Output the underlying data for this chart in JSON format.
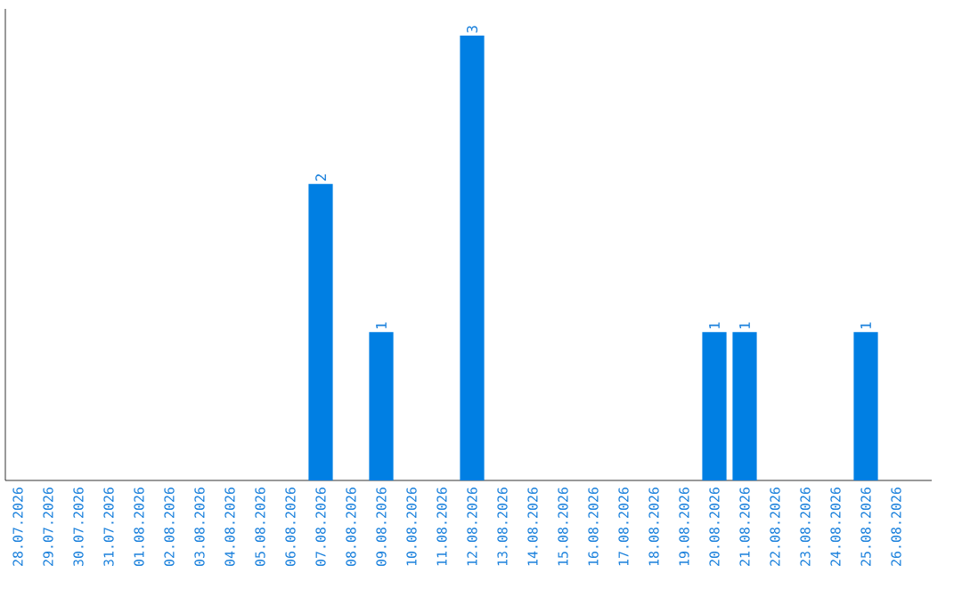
{
  "chart_data": {
    "type": "bar",
    "categories": [
      "28.07.2026",
      "29.07.2026",
      "30.07.2026",
      "31.07.2026",
      "01.08.2026",
      "02.08.2026",
      "03.08.2026",
      "04.08.2026",
      "05.08.2026",
      "06.08.2026",
      "07.08.2026",
      "08.08.2026",
      "09.08.2026",
      "10.08.2026",
      "11.08.2026",
      "12.08.2026",
      "13.08.2026",
      "14.08.2026",
      "15.08.2026",
      "16.08.2026",
      "17.08.2026",
      "18.08.2026",
      "19.08.2026",
      "20.08.2026",
      "21.08.2026",
      "22.08.2026",
      "23.08.2026",
      "24.08.2026",
      "25.08.2026",
      "26.08.2026"
    ],
    "values": [
      0,
      0,
      0,
      0,
      0,
      0,
      0,
      0,
      0,
      0,
      2,
      0,
      1,
      0,
      0,
      3,
      0,
      0,
      0,
      0,
      0,
      0,
      0,
      1,
      1,
      0,
      0,
      0,
      1,
      0
    ],
    "value_labels": [
      null,
      null,
      null,
      null,
      null,
      null,
      null,
      null,
      null,
      null,
      "2",
      null,
      "1",
      null,
      null,
      "3",
      null,
      null,
      null,
      null,
      null,
      null,
      null,
      "1",
      "1",
      null,
      null,
      null,
      "1",
      null
    ],
    "color": "#007fe3",
    "tick_labels": "x"
  }
}
